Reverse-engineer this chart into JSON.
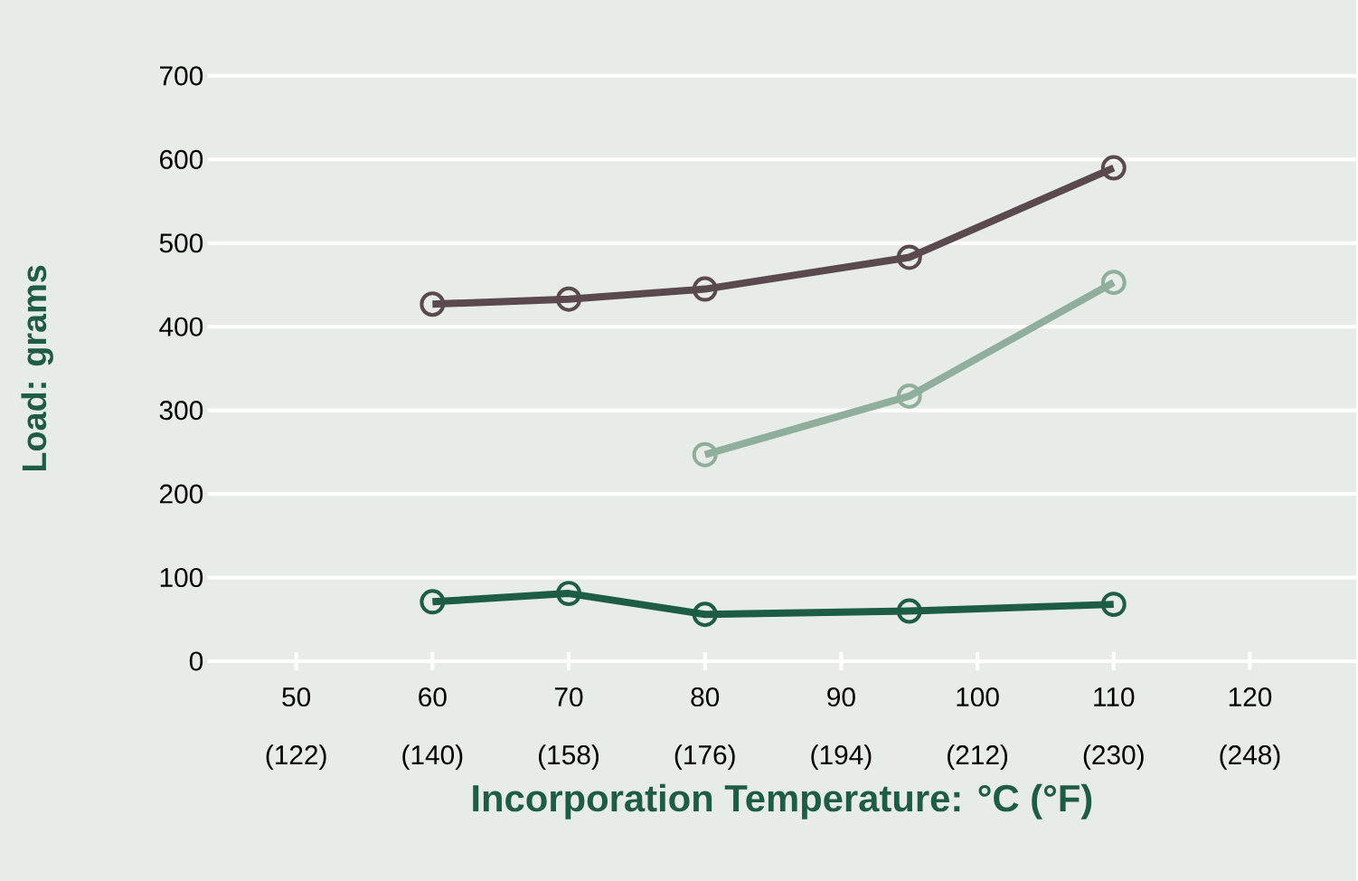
{
  "chart_data": {
    "type": "line",
    "xlabel": "Incorporation Temperature: °C (°F)",
    "ylabel": "Load: grams",
    "xlim": [
      43.5,
      127.8
    ],
    "xticks": [
      50,
      60,
      70,
      80,
      90,
      100,
      110,
      120
    ],
    "x2lim": [
      110.3,
      262.04
    ],
    "x2ticks": [
      {
        "value": 122,
        "label": "(122)"
      },
      {
        "value": 140,
        "label": "(140)"
      },
      {
        "value": 158,
        "label": "(158)"
      },
      {
        "value": 176,
        "label": "(176)"
      },
      {
        "value": 194,
        "label": "(194)"
      },
      {
        "value": 212,
        "label": "(212)"
      },
      {
        "value": 230,
        "label": "(230)"
      },
      {
        "value": 248,
        "label": "(248)"
      }
    ],
    "ylim": [
      0,
      700
    ],
    "yticks": [
      {
        "value": 0,
        "label": "0"
      },
      {
        "value": 100,
        "label": "100"
      },
      {
        "value": 200,
        "label": "200"
      },
      {
        "value": 300,
        "label": "300"
      },
      {
        "value": 400,
        "label": "400"
      },
      {
        "value": 500,
        "label": "500"
      },
      {
        "value": 600,
        "label": "600"
      },
      {
        "value": 700,
        "label": "700"
      }
    ],
    "grid": "y",
    "marker": "circle",
    "line_style": "solid",
    "series": [
      {
        "color": "#5a4a50",
        "x": [
          60,
          70,
          80,
          95,
          110
        ],
        "values": [
          427,
          433,
          445,
          483,
          590
        ]
      },
      {
        "color": "#8fae9c",
        "x": [
          80,
          95,
          110
        ],
        "values": [
          247,
          317,
          453
        ]
      },
      {
        "color": "#1d5c45",
        "x": [
          60,
          70,
          80,
          95,
          110
        ],
        "values": [
          71,
          81,
          56,
          60,
          68
        ]
      }
    ]
  }
}
